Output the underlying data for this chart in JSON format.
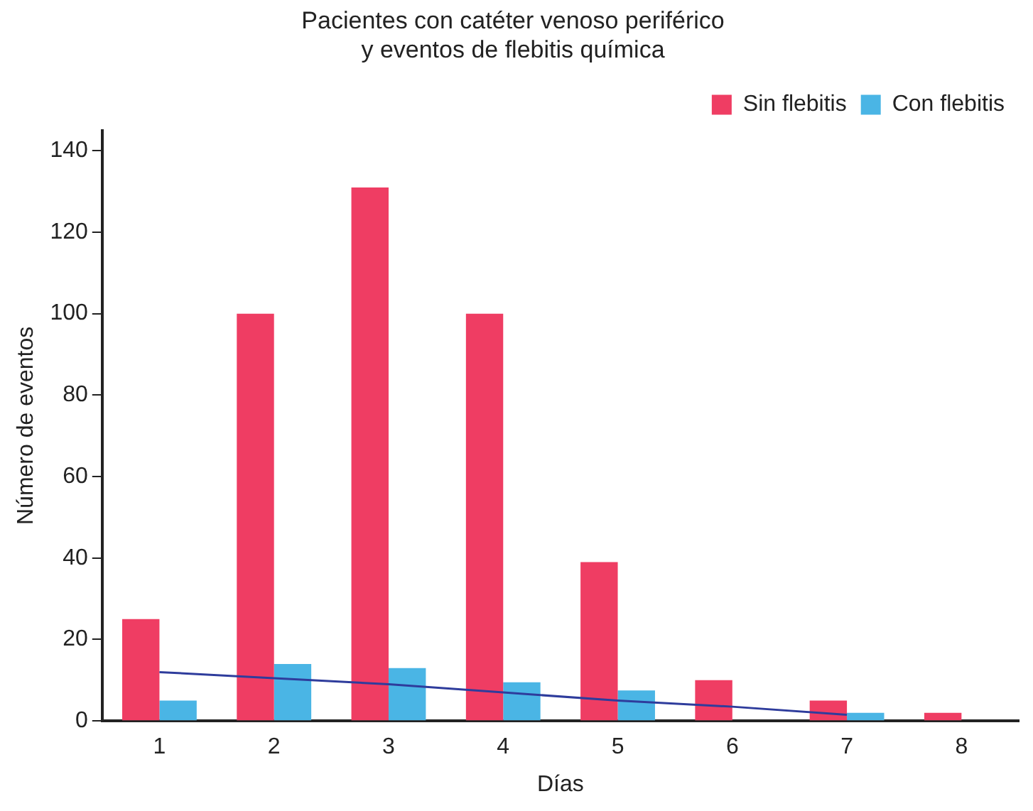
{
  "chart_data": {
    "type": "bar",
    "title": "Pacientes con catéter venoso periférico\ny eventos de flebitis química",
    "xlabel": "Días",
    "ylabel": "Número de eventos",
    "categories": [
      "1",
      "2",
      "3",
      "4",
      "5",
      "6",
      "7",
      "8"
    ],
    "series": [
      {
        "name": "Sin flebitis",
        "color": "#ef3d63",
        "values": [
          25,
          100,
          131,
          100,
          39,
          10,
          5,
          2
        ]
      },
      {
        "name": "Con flebitis",
        "color": "#4ab5e5",
        "values": [
          5,
          14,
          13,
          9.5,
          7.5,
          null,
          2,
          null
        ]
      },
      {
        "type": "line",
        "color": "#2e3c9c",
        "values": [
          12,
          10.5,
          9,
          7,
          5,
          3.5,
          1.5,
          null
        ]
      }
    ],
    "ylim": [
      0,
      145
    ],
    "yticks": [
      0,
      20,
      40,
      60,
      80,
      100,
      120,
      140
    ],
    "grid": false,
    "legend": "top right",
    "marker": "none",
    "line_style": "solid"
  }
}
